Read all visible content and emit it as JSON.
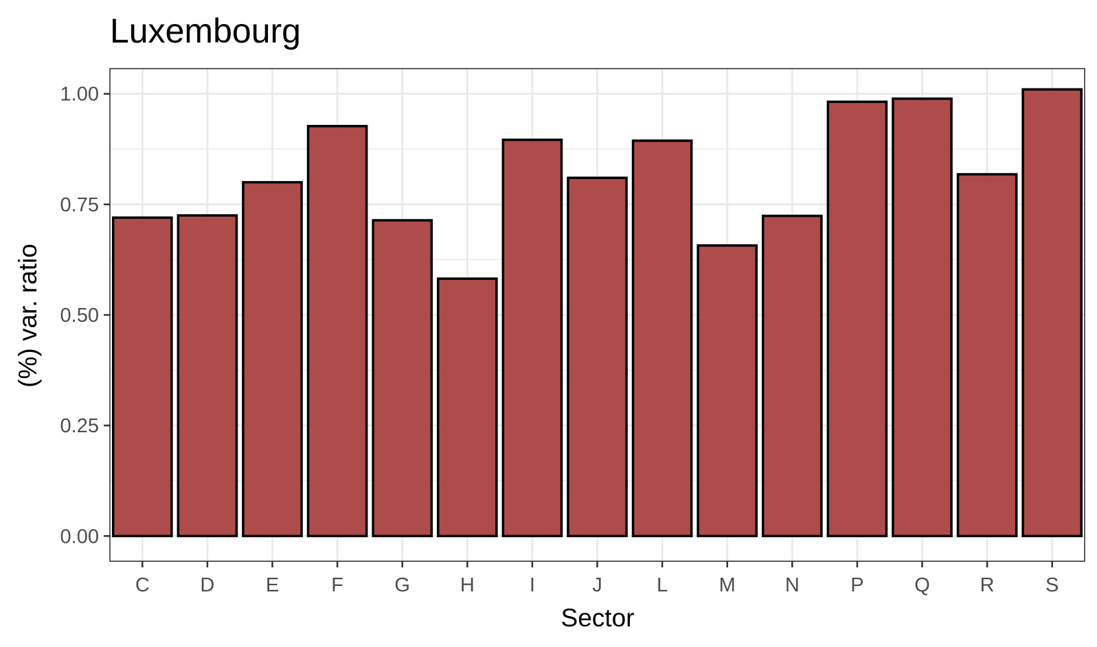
{
  "chart_data": {
    "type": "bar",
    "title": "Luxembourg",
    "xlabel": "Sector",
    "ylabel": "(%) var. ratio",
    "categories": [
      "C",
      "D",
      "E",
      "F",
      "G",
      "H",
      "I",
      "J",
      "L",
      "M",
      "N",
      "P",
      "Q",
      "R",
      "S"
    ],
    "values": [
      0.72,
      0.725,
      0.8,
      0.927,
      0.714,
      0.582,
      0.896,
      0.81,
      0.894,
      0.657,
      0.724,
      0.982,
      0.989,
      0.818,
      1.01
    ],
    "ylim": [
      -0.057,
      1.057
    ],
    "yticks": [
      0,
      0.25,
      0.5,
      0.75,
      1.0
    ],
    "ytick_labels": [
      "0.00",
      "0.25",
      "0.50",
      "0.75",
      "1.00"
    ],
    "grid": true,
    "legend": "none",
    "colors": {
      "bar_fill": "#a73d3d",
      "bar_stroke": "#000000",
      "grid": "#ebebeb",
      "panel_border": "#333333"
    }
  }
}
